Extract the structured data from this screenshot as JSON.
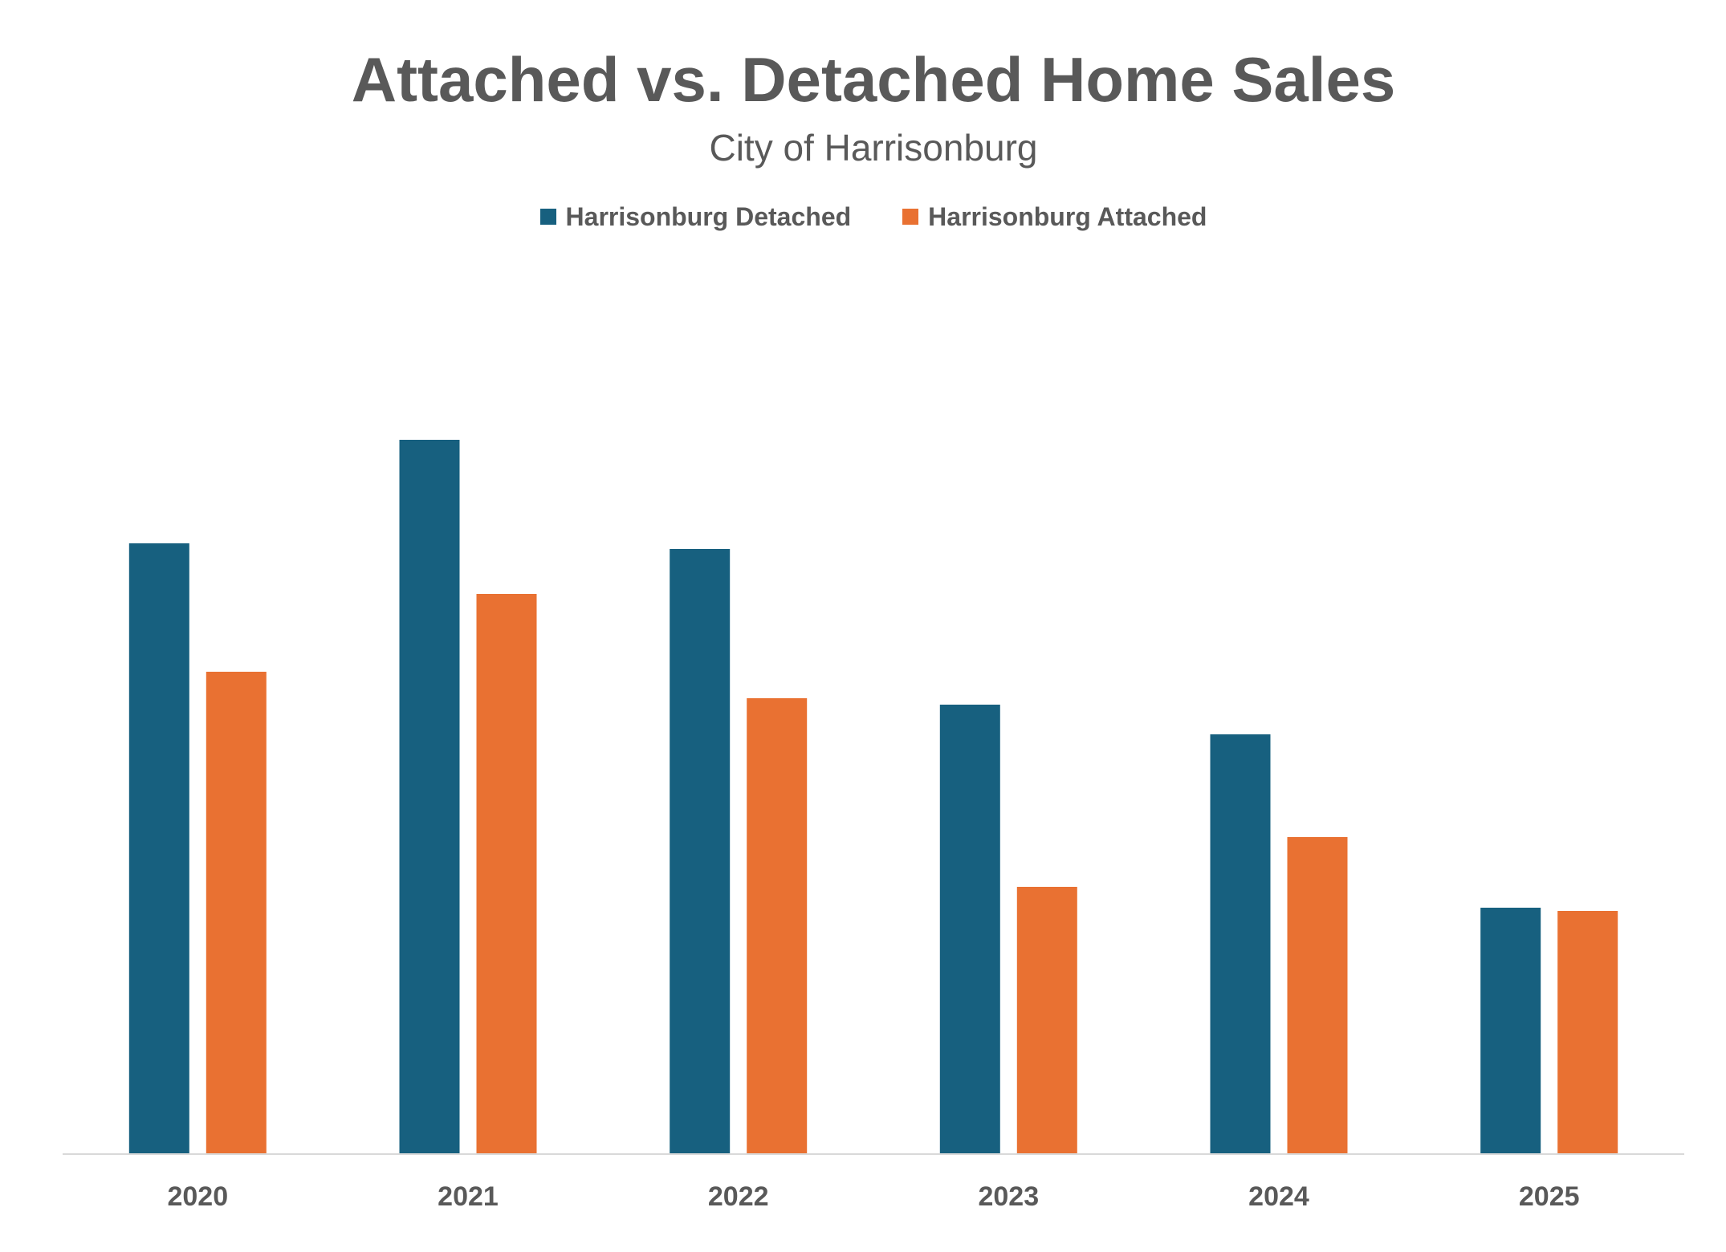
{
  "chart_data": {
    "type": "bar",
    "title": "Attached vs. Detached Home Sales",
    "subtitle": "City of Harrisonburg",
    "xlabel": "",
    "ylabel": "",
    "categories": [
      "2020",
      "2021",
      "2022",
      "2023",
      "2024",
      "2025"
    ],
    "series": [
      {
        "name": "Harrisonburg Detached",
        "color": "#17607f",
        "values": [
          760,
          889,
          753,
          559,
          522,
          306
        ]
      },
      {
        "name": "Harrisonburg Attached",
        "color": "#e97132",
        "values": [
          600,
          697,
          567,
          332,
          394,
          302
        ]
      }
    ],
    "ylim": [
      0,
      1000
    ],
    "grid": false,
    "legend_position": "top"
  }
}
